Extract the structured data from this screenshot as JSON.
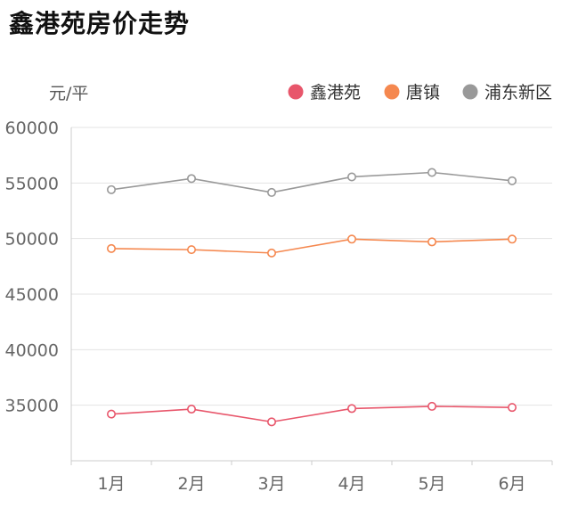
{
  "title": "鑫港苑房价走势",
  "chart_data": {
    "type": "line",
    "title": "鑫港苑房价走势",
    "ylabel": "元/平",
    "xlabel": "",
    "categories": [
      "1月",
      "2月",
      "3月",
      "4月",
      "5月",
      "6月"
    ],
    "ylim": [
      30000,
      60000
    ],
    "yticks": [
      35000,
      40000,
      45000,
      50000,
      55000,
      60000
    ],
    "grid": true,
    "legend_position": "top-right",
    "series": [
      {
        "name": "鑫港苑",
        "color": "#e8566b",
        "values": [
          34200,
          34650,
          33500,
          34700,
          34900,
          34800
        ]
      },
      {
        "name": "唐镇",
        "color": "#f5884f",
        "values": [
          49100,
          49000,
          48700,
          49950,
          49700,
          49950
        ]
      },
      {
        "name": "浦东新区",
        "color": "#999999",
        "values": [
          54400,
          55400,
          54150,
          55550,
          55950,
          55200
        ]
      }
    ]
  }
}
